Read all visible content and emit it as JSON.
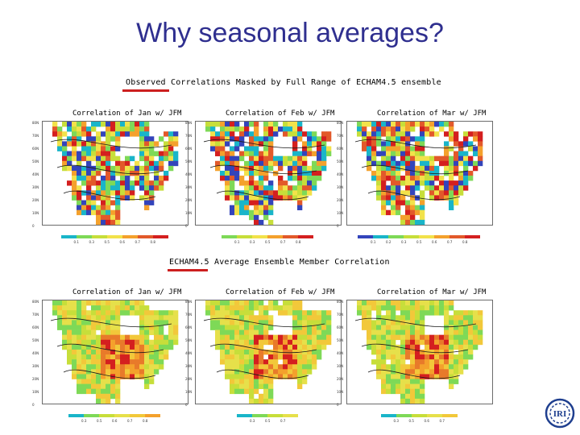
{
  "slide": {
    "title": "Why seasonal averages?"
  },
  "sections": [
    {
      "label": "Observed Correlations Masked by Full Range of ECHAM4.5 ensemble",
      "panels": [
        {
          "title": "Correlation of Jan w/ JFM",
          "palette": "observed",
          "colorbar": [
            "0.1",
            "0.3",
            "0.5",
            "0.6",
            "0.7",
            "0.8"
          ]
        },
        {
          "title": "Correlation of Feb w/ JFM",
          "palette": "observed",
          "colorbar": [
            "0.1",
            "0.3",
            "0.5",
            "0.7",
            "0.8"
          ]
        },
        {
          "title": "Correlation of Mar w/ JFM",
          "palette": "observed",
          "colorbar": [
            "0.1",
            "0.2",
            "0.3",
            "0.5",
            "0.6",
            "0.7",
            "0.8"
          ]
        }
      ]
    },
    {
      "label": "ECHAM4.5 Average Ensemble Member Correlation",
      "panels": [
        {
          "title": "Correlation of Jan w/ JFM",
          "palette": "model",
          "colorbar": [
            "0.3",
            "0.5",
            "0.6",
            "0.7",
            "0.8"
          ]
        },
        {
          "title": "Correlation of Feb w/ JFM",
          "palette": "model",
          "colorbar": [
            "0.3",
            "0.5",
            "0.7"
          ]
        },
        {
          "title": "Correlation of Mar w/ JFM",
          "palette": "model",
          "colorbar": [
            "0.3",
            "0.5",
            "0.6",
            "0.7"
          ]
        }
      ]
    }
  ],
  "colors": {
    "title": "#2f2f8f",
    "accent_underline": "#cc1f1f",
    "ocean": "#ffffff",
    "observed_scale": [
      "#3344bb",
      "#19b5c9",
      "#7ed957",
      "#c7de3a",
      "#f2e24a",
      "#f4a12c",
      "#e2592a",
      "#d41f1f"
    ],
    "model_scale": [
      "#19b5c9",
      "#7ed957",
      "#c7de3a",
      "#e6e04a",
      "#f2c83a",
      "#f4a12c",
      "#e87a2a",
      "#d41f1f"
    ]
  },
  "logo": {
    "text": "IRI"
  }
}
